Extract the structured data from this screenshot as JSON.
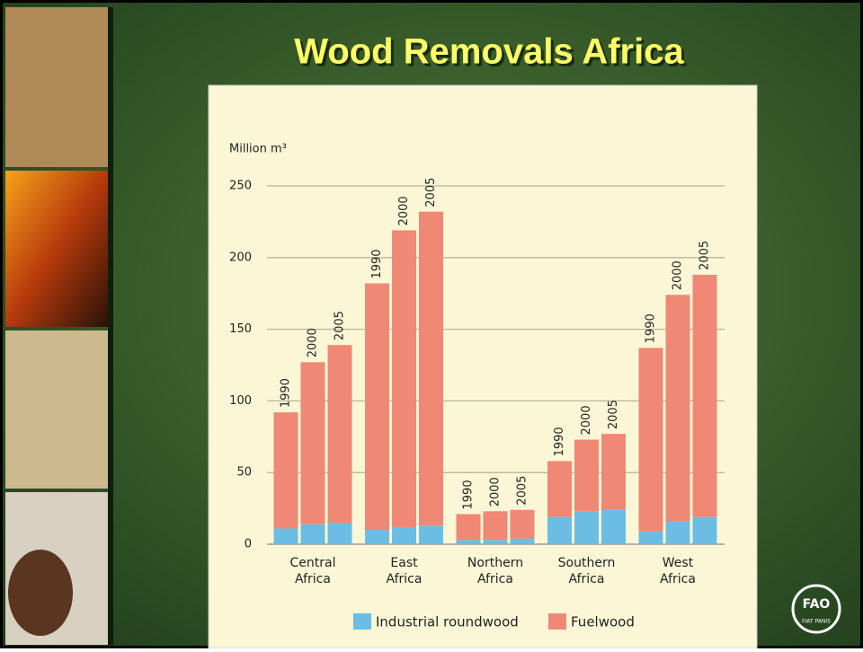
{
  "slide_title": "Wood Removals Africa",
  "logo": {
    "text": "FAO",
    "motto": "FIAT PANIS"
  },
  "chart_data": {
    "type": "stacked_bar",
    "y_label": "Million m³",
    "groups": [
      "Central Africa",
      "East Africa",
      "Northern Africa",
      "Southern Africa",
      "West Africa"
    ],
    "years": [
      "1990",
      "2000",
      "2005"
    ],
    "series": [
      {
        "name": "Industrial roundwood",
        "color": "#6bbde3",
        "values": [
          11,
          14,
          15,
          10,
          12,
          13,
          3,
          3,
          4,
          19,
          23,
          24,
          9,
          16,
          19
        ]
      },
      {
        "name": "Fuelwood",
        "color": "#ef8874",
        "values": [
          81,
          113,
          124,
          172,
          207,
          219,
          18,
          20,
          20,
          39,
          50,
          53,
          128,
          158,
          169
        ]
      }
    ],
    "ylim": [
      0,
      250
    ],
    "yticks": [
      0,
      50,
      100,
      150,
      200,
      250
    ],
    "grid": true
  }
}
